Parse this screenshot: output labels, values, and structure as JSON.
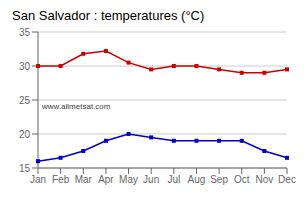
{
  "chart_data": {
    "type": "line",
    "title": "San Salvador : temperatures (°C)",
    "categories": [
      "Jan",
      "Feb",
      "Mar",
      "Apr",
      "May",
      "Jun",
      "Jul",
      "Aug",
      "Sep",
      "Oct",
      "Nov",
      "Dec"
    ],
    "series": [
      {
        "color": "#cc0000",
        "marker": "square",
        "values": [
          30.0,
          30.0,
          31.8,
          32.2,
          30.5,
          29.5,
          30.0,
          30.0,
          29.5,
          29.0,
          29.0,
          29.5
        ]
      },
      {
        "color": "#0000cc",
        "marker": "square",
        "values": [
          16.0,
          16.5,
          17.5,
          19.0,
          20.0,
          19.5,
          19.0,
          19.0,
          19.0,
          19.0,
          17.5,
          16.5
        ]
      }
    ],
    "ylim": [
      15,
      35
    ],
    "yticks": [
      15,
      20,
      25,
      30,
      35
    ],
    "grid": "y",
    "annotations": [
      "www.allmetsat.com"
    ]
  }
}
